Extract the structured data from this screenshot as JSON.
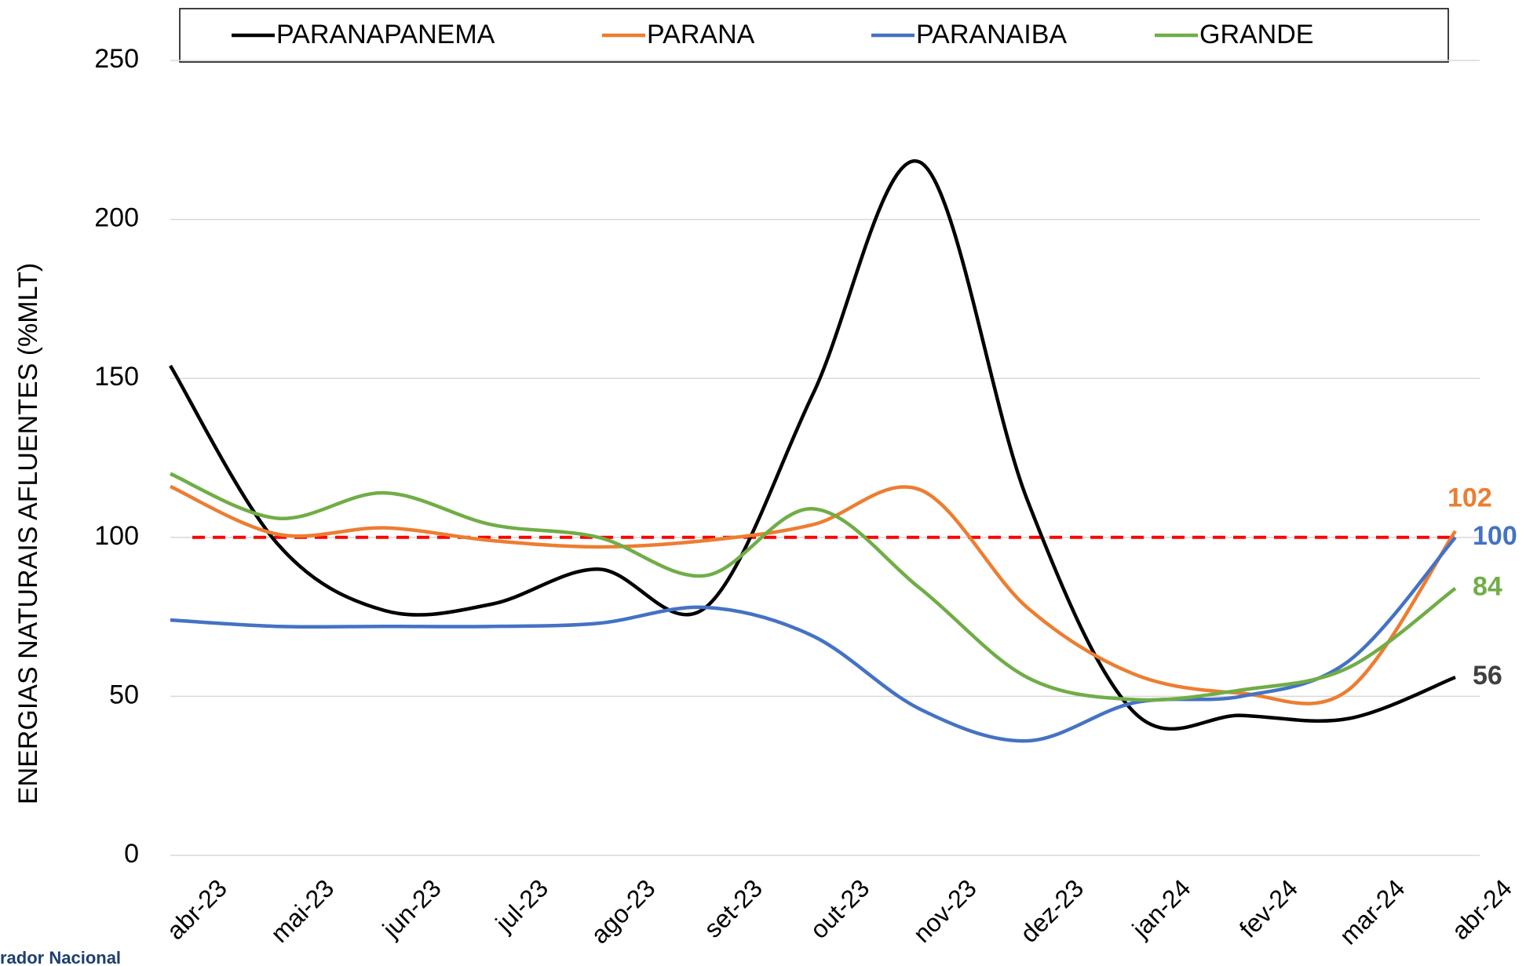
{
  "chart_data": {
    "type": "line",
    "y_label": "ENERGIAS NATURAIS AFLUENTES (%MLT)",
    "categories": [
      "abr-23",
      "mai-23",
      "jun-23",
      "jul-23",
      "ago-23",
      "set-23",
      "out-23",
      "nov-23",
      "dez-23",
      "jan-24",
      "fev-24",
      "mar-24",
      "abr-24"
    ],
    "series": [
      {
        "name": "PARANAPANEMA",
        "color": "#000000",
        "values": [
          154,
          98,
          77,
          79,
          90,
          78,
          145,
          218,
          112,
          45,
          44,
          43,
          56
        ]
      },
      {
        "name": "PARANA",
        "color": "#ed7d31",
        "values": [
          116,
          101,
          103,
          99,
          97,
          99,
          104,
          115,
          78,
          57,
          51,
          52,
          102
        ]
      },
      {
        "name": "PARANAIBA",
        "color": "#4472c4",
        "values": [
          74,
          72,
          72,
          72,
          73,
          78,
          69,
          46,
          36,
          48,
          50,
          61,
          100
        ]
      },
      {
        "name": "GRANDE",
        "color": "#70ad47",
        "values": [
          120,
          106,
          114,
          104,
          100,
          88,
          109,
          84,
          56,
          49,
          52,
          59,
          84
        ]
      }
    ],
    "reference_line": {
      "value": 100,
      "color": "#ff0000"
    },
    "ylim": [
      0,
      250
    ],
    "yticks": [
      0,
      50,
      100,
      150,
      200,
      250
    ],
    "grid": true,
    "legend": "top",
    "footer_text": "rador Nacional"
  }
}
